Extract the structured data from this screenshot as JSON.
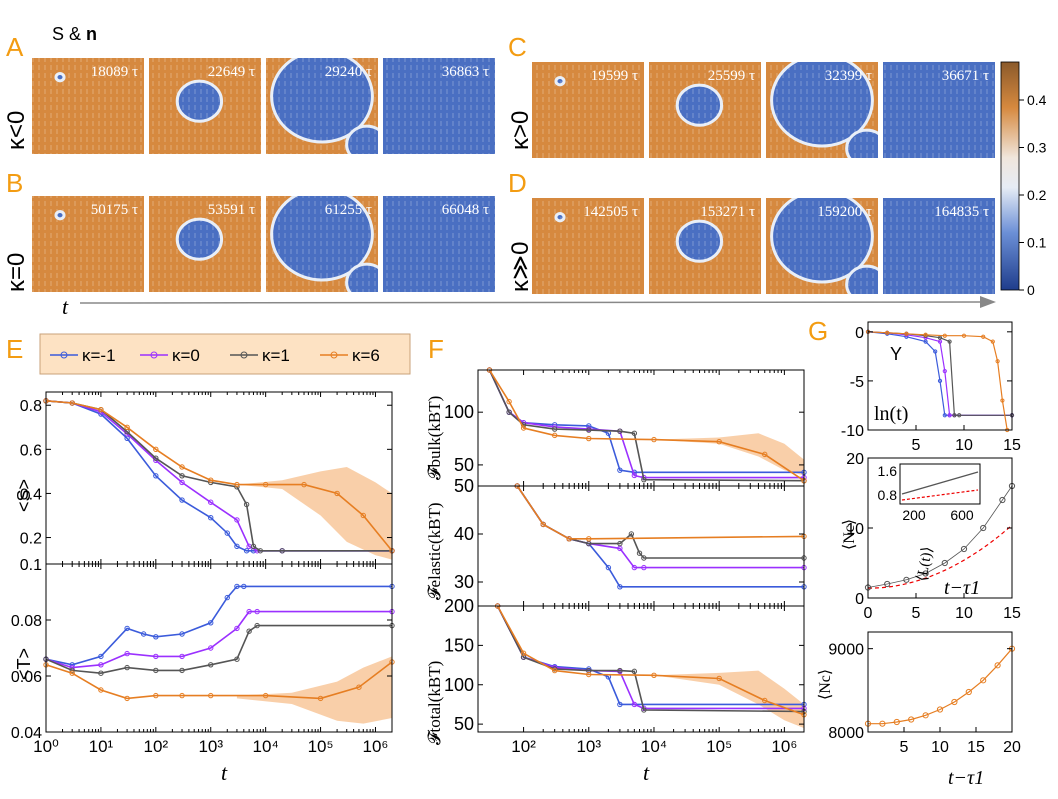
{
  "colors": {
    "panel_letter": "#f39c12",
    "orange_field": "#d6893f",
    "blue_field": "#4a6fc2",
    "k_neg1": "#3b5bdb",
    "k_0": "#9b30ff",
    "k_1": "#555555",
    "k_6": "#e67e22",
    "band_6": "#f8c79a",
    "axis": "#000000"
  },
  "labels": {
    "A": "A",
    "B": "B",
    "C": "C",
    "D": "D",
    "E": "E",
    "F": "F",
    "G": "G",
    "s_and_n": "S & ",
    "n_bold": "n",
    "row_a": "κ<0",
    "row_b": "κ=0",
    "row_c": "κ>0",
    "row_d": "κ≫0",
    "t_arrow": "t"
  },
  "snapshots": {
    "A": [
      "18089 τ",
      "22649 τ",
      "29240 τ",
      "36863 τ"
    ],
    "B": [
      "50175 τ",
      "53591 τ",
      "61255 τ",
      "66048 τ"
    ],
    "C": [
      "19599 τ",
      "25599 τ",
      "32399 τ",
      "36671 τ"
    ],
    "D": [
      "142505 τ",
      "153271 τ",
      "159200 τ",
      "164835 τ"
    ]
  },
  "colorbar": {
    "ticks": [
      "0.4",
      "0.3",
      "0.2",
      "0.1",
      "0"
    ]
  },
  "legend": [
    {
      "label": "κ=-1",
      "color": "#3b5bdb"
    },
    {
      "label": "κ=0",
      "color": "#9b30ff"
    },
    {
      "label": "κ=1",
      "color": "#555555"
    },
    {
      "label": "κ=6",
      "color": "#e67e22"
    }
  ],
  "axes_text": {
    "E_top_ylabel": "<S>",
    "E_bot_ylabel": "<T>",
    "E_xlabel": "t",
    "E_xticks": [
      "10⁰",
      "10¹",
      "10²",
      "10³",
      "10⁴",
      "10⁵",
      "10⁶"
    ],
    "E_top_yticks": [
      "0.8",
      "0.6",
      "0.4",
      "0.2"
    ],
    "E_bot_yticks": [
      "0.1",
      "0.08",
      "0.06",
      "0.04"
    ],
    "F_ylabel_bulk": "𝓕bulk(kBT)",
    "F_ylabel_elastic": "𝓕elastic(kBT)",
    "F_ylabel_total": "𝓕total(kBT)",
    "F_xlabel": "t",
    "F_xticks": [
      "10²",
      "10³",
      "10⁴",
      "10⁵",
      "10⁶"
    ],
    "F_bulk_yticks": [
      "100",
      "50"
    ],
    "F_elastic_yticks": [
      "50",
      "40",
      "30"
    ],
    "F_total_yticks": [
      "200",
      "150",
      "100",
      "50"
    ],
    "G1_xticks": [
      "5",
      "10",
      "15"
    ],
    "G1_yticks": [
      "0",
      "-5",
      "-10"
    ],
    "G1_ylabel": "Y",
    "G1_xlabel": "ln(t)",
    "G2_yticks": [
      "20",
      "10",
      "0"
    ],
    "G2_xticks": [
      "0",
      "5",
      "10",
      "15"
    ],
    "G2_ylabel": "⟨Nc⟩",
    "G2_xlabel": "t−τ1",
    "G2_inset_yticks": [
      "1.6",
      "0.8"
    ],
    "G2_inset_xticks": [
      "200",
      "600"
    ],
    "G2_inset_ylabel": "⟨L(t)⟩",
    "G3_yticks": [
      "9000",
      "8000"
    ],
    "G3_xticks": [
      "5",
      "10",
      "15",
      "20"
    ],
    "G3_ylabel": "⟨Nc⟩",
    "G3_xlabel": "t−τ1"
  },
  "chart_data": [
    {
      "id": "E-top",
      "type": "line",
      "ylabel": "<S>",
      "xlabel": "t",
      "xscale": "log",
      "xlim": [
        1,
        2000000
      ],
      "ylim": [
        0.08,
        0.86
      ],
      "series": [
        {
          "name": "κ=-1",
          "x": [
            1,
            3,
            10,
            30,
            100,
            300,
            1000,
            2000,
            3000,
            4500,
            6000,
            20000,
            2000000
          ],
          "y": [
            0.82,
            0.81,
            0.76,
            0.65,
            0.48,
            0.37,
            0.29,
            0.22,
            0.16,
            0.14,
            0.14,
            0.14,
            0.14
          ]
        },
        {
          "name": "κ=0",
          "x": [
            1,
            3,
            10,
            30,
            100,
            300,
            1000,
            3000,
            5000,
            7000,
            20000,
            2000000
          ],
          "y": [
            0.82,
            0.81,
            0.77,
            0.67,
            0.55,
            0.45,
            0.36,
            0.28,
            0.16,
            0.14,
            0.14,
            0.14
          ]
        },
        {
          "name": "κ=1",
          "x": [
            1,
            3,
            10,
            30,
            100,
            300,
            1000,
            3000,
            4500,
            6000,
            8000,
            20000,
            2000000
          ],
          "y": [
            0.82,
            0.81,
            0.78,
            0.68,
            0.56,
            0.48,
            0.45,
            0.43,
            0.35,
            0.16,
            0.14,
            0.14,
            0.14
          ]
        },
        {
          "name": "κ=6",
          "x": [
            1,
            3,
            10,
            30,
            100,
            300,
            1000,
            3000,
            10000,
            50000,
            200000,
            600000,
            2000000
          ],
          "y": [
            0.82,
            0.81,
            0.78,
            0.7,
            0.6,
            0.52,
            0.46,
            0.44,
            0.44,
            0.44,
            0.4,
            0.3,
            0.14
          ]
        }
      ]
    },
    {
      "id": "E-bottom",
      "type": "line",
      "ylabel": "<T>",
      "xlabel": "t",
      "xscale": "log",
      "xlim": [
        1,
        2000000
      ],
      "ylim": [
        0.04,
        0.1
      ],
      "series": [
        {
          "name": "κ=-1",
          "x": [
            1,
            3,
            10,
            30,
            60,
            100,
            300,
            1000,
            2000,
            3000,
            4000,
            2000000
          ],
          "y": [
            0.066,
            0.064,
            0.067,
            0.077,
            0.075,
            0.074,
            0.075,
            0.079,
            0.088,
            0.092,
            0.092,
            0.092
          ]
        },
        {
          "name": "κ=0",
          "x": [
            1,
            3,
            10,
            30,
            100,
            300,
            1000,
            3000,
            5000,
            7000,
            2000000
          ],
          "y": [
            0.066,
            0.063,
            0.064,
            0.068,
            0.067,
            0.067,
            0.07,
            0.077,
            0.083,
            0.083,
            0.083
          ]
        },
        {
          "name": "κ=1",
          "x": [
            1,
            3,
            10,
            30,
            100,
            300,
            1000,
            3000,
            5000,
            7000,
            2000000
          ],
          "y": [
            0.066,
            0.062,
            0.061,
            0.063,
            0.062,
            0.062,
            0.064,
            0.066,
            0.076,
            0.078,
            0.078
          ]
        },
        {
          "name": "κ=6",
          "x": [
            1,
            3,
            10,
            30,
            100,
            300,
            1000,
            10000,
            100000,
            500000,
            2000000
          ],
          "y": [
            0.064,
            0.061,
            0.055,
            0.052,
            0.053,
            0.053,
            0.053,
            0.053,
            0.052,
            0.056,
            0.065
          ]
        }
      ]
    },
    {
      "id": "F-bulk",
      "type": "line",
      "ylabel": "Fbulk(kBT)",
      "xscale": "log",
      "xlim": [
        20,
        2000000
      ],
      "ylim": [
        30,
        140
      ],
      "series": [
        {
          "name": "κ=-1",
          "x": [
            30,
            60,
            100,
            300,
            1000,
            2000,
            3000,
            5000,
            2000000
          ],
          "y": [
            140,
            100,
            90,
            88,
            87,
            80,
            45,
            43,
            43
          ]
        },
        {
          "name": "κ=0",
          "x": [
            30,
            60,
            100,
            300,
            1000,
            3000,
            5000,
            7000,
            2000000
          ],
          "y": [
            140,
            100,
            90,
            86,
            84,
            82,
            40,
            38,
            38
          ]
        },
        {
          "name": "κ=1",
          "x": [
            30,
            60,
            100,
            300,
            1000,
            3000,
            5000,
            7000,
            2000000
          ],
          "y": [
            140,
            100,
            88,
            84,
            83,
            82,
            80,
            36,
            35
          ]
        },
        {
          "name": "κ=6",
          "x": [
            30,
            60,
            100,
            300,
            1000,
            10000,
            100000,
            500000,
            2000000
          ],
          "y": [
            140,
            110,
            85,
            78,
            75,
            74,
            72,
            60,
            35
          ]
        }
      ]
    },
    {
      "id": "F-elastic",
      "type": "line",
      "ylabel": "Felastic(kBT)",
      "xscale": "log",
      "xlim": [
        20,
        2000000
      ],
      "ylim": [
        25,
        50
      ],
      "series": [
        {
          "name": "κ=-1",
          "x": [
            80,
            200,
            500,
            1000,
            2000,
            3000,
            2000000
          ],
          "y": [
            50,
            42,
            39,
            38,
            33,
            29,
            29
          ]
        },
        {
          "name": "κ=0",
          "x": [
            80,
            200,
            500,
            1000,
            3000,
            5000,
            7000,
            2000000
          ],
          "y": [
            50,
            42,
            39,
            38,
            37,
            33,
            33,
            33
          ]
        },
        {
          "name": "κ=1",
          "x": [
            80,
            200,
            500,
            1000,
            3000,
            4500,
            6000,
            7000,
            2000000
          ],
          "y": [
            50,
            42,
            39,
            38,
            38,
            40,
            36,
            35,
            35
          ]
        },
        {
          "name": "κ=6",
          "x": [
            80,
            200,
            500,
            1000,
            2000000
          ],
          "y": [
            50,
            42,
            39,
            39,
            39.5
          ]
        }
      ]
    },
    {
      "id": "F-total",
      "type": "line",
      "ylabel": "Ftotal(kBT)",
      "xscale": "log",
      "xlim": [
        20,
        2000000
      ],
      "ylim": [
        40,
        200
      ],
      "series": [
        {
          "name": "κ=-1",
          "x": [
            40,
            100,
            300,
            1000,
            2000,
            3000,
            2000000
          ],
          "y": [
            200,
            135,
            123,
            120,
            110,
            75,
            75
          ]
        },
        {
          "name": "κ=0",
          "x": [
            40,
            100,
            300,
            1000,
            3000,
            5000,
            7000,
            2000000
          ],
          "y": [
            200,
            135,
            122,
            118,
            117,
            75,
            70,
            70
          ]
        },
        {
          "name": "κ=1",
          "x": [
            40,
            100,
            300,
            1000,
            3000,
            5000,
            7000,
            2000000
          ],
          "y": [
            200,
            135,
            120,
            118,
            118,
            117,
            68,
            66
          ]
        },
        {
          "name": "κ=6",
          "x": [
            40,
            100,
            300,
            1000,
            10000,
            100000,
            500000,
            2000000
          ],
          "y": [
            200,
            140,
            118,
            113,
            112,
            108,
            80,
            62
          ]
        }
      ]
    },
    {
      "id": "G-Y",
      "type": "scatter",
      "ylabel": "Y",
      "xlabel": "ln(t)",
      "xlim": [
        0,
        15
      ],
      "ylim": [
        -10,
        1
      ],
      "series": [
        {
          "name": "κ=-1",
          "x": [
            0,
            2,
            4,
            6,
            7,
            7.5,
            8,
            8.5,
            15
          ],
          "y": [
            0,
            -0.2,
            -0.5,
            -1,
            -2,
            -5,
            -8.5,
            -8.5,
            -8.5
          ]
        },
        {
          "name": "κ=0",
          "x": [
            0,
            2,
            4,
            6,
            7.5,
            8,
            8.5,
            9,
            15
          ],
          "y": [
            0,
            -0.1,
            -0.3,
            -0.6,
            -1,
            -4,
            -8.5,
            -8.5,
            -8.5
          ]
        },
        {
          "name": "κ=1",
          "x": [
            0,
            2,
            4,
            6,
            7.5,
            8.5,
            9,
            9.5,
            15
          ],
          "y": [
            0,
            -0.1,
            -0.2,
            -0.4,
            -0.6,
            -1,
            -8.5,
            -8.5,
            -8.5
          ]
        },
        {
          "name": "κ=6",
          "x": [
            0,
            2,
            4,
            6,
            8,
            10,
            12,
            13,
            13.5,
            14,
            14.5
          ],
          "y": [
            0,
            -0.1,
            -0.2,
            -0.3,
            -0.4,
            -0.4,
            -0.5,
            -1,
            -3,
            -7,
            -10
          ]
        }
      ]
    },
    {
      "id": "G-Nc",
      "type": "scatter",
      "ylabel": "⟨Nc⟩",
      "xlabel": "t−τ1",
      "xlim": [
        0,
        15
      ],
      "ylim": [
        0,
        20
      ],
      "series": [
        {
          "name": "κ=1",
          "x": [
            0,
            2,
            4,
            6,
            8,
            10,
            12,
            14,
            15
          ],
          "y": [
            1.5,
            2,
            2.6,
            3.5,
            5,
            7,
            10,
            14,
            16
          ]
        }
      ]
    },
    {
      "id": "G-Nc-6",
      "type": "scatter",
      "ylabel": "⟨Nc⟩",
      "xlabel": "t−τ1",
      "xlim": [
        0,
        20
      ],
      "ylim": [
        8000,
        9200
      ],
      "series": [
        {
          "name": "κ=6",
          "x": [
            0,
            2,
            4,
            6,
            8,
            10,
            12,
            14,
            16,
            18,
            20
          ],
          "y": [
            8100,
            8100,
            8120,
            8150,
            8200,
            8270,
            8360,
            8480,
            8620,
            8800,
            9000
          ]
        }
      ]
    }
  ]
}
